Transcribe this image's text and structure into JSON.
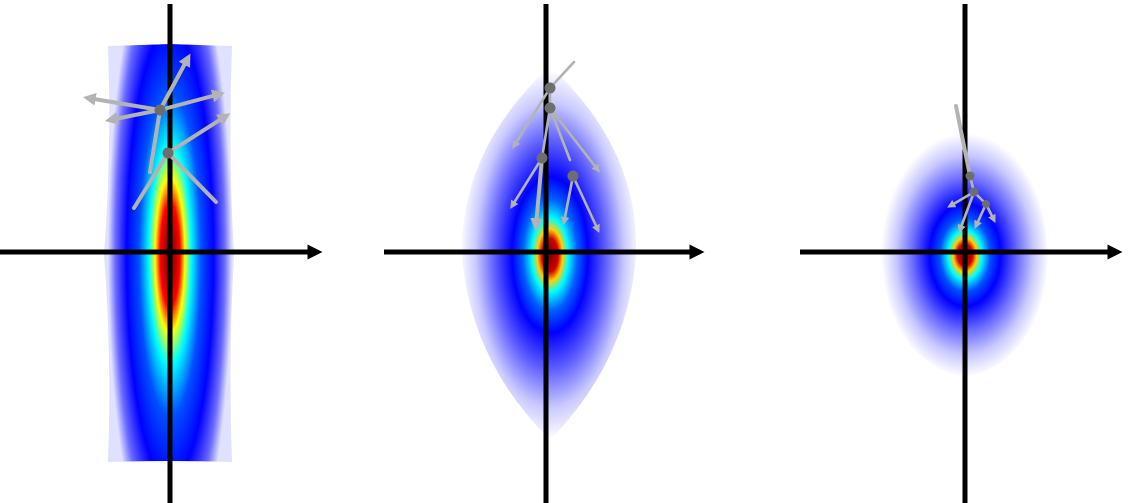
{
  "panels": [
    {
      "id": "left",
      "y_label": "",
      "x_label": ""
    },
    {
      "id": "middle",
      "y_label": "",
      "x_label": ""
    },
    {
      "id": "right",
      "y_label": "",
      "x_label": ""
    }
  ],
  "colors": {
    "heat_core": "#800000",
    "heat_red": "#ff0000",
    "heat_yellow": "#ffff00",
    "heat_cyan": "#00ffff",
    "heat_blue": "#0000ff",
    "heat_edge": "#ffffff",
    "axis": "#000000",
    "arrow": "#b3b3b3",
    "node": "#6e6e6e"
  }
}
